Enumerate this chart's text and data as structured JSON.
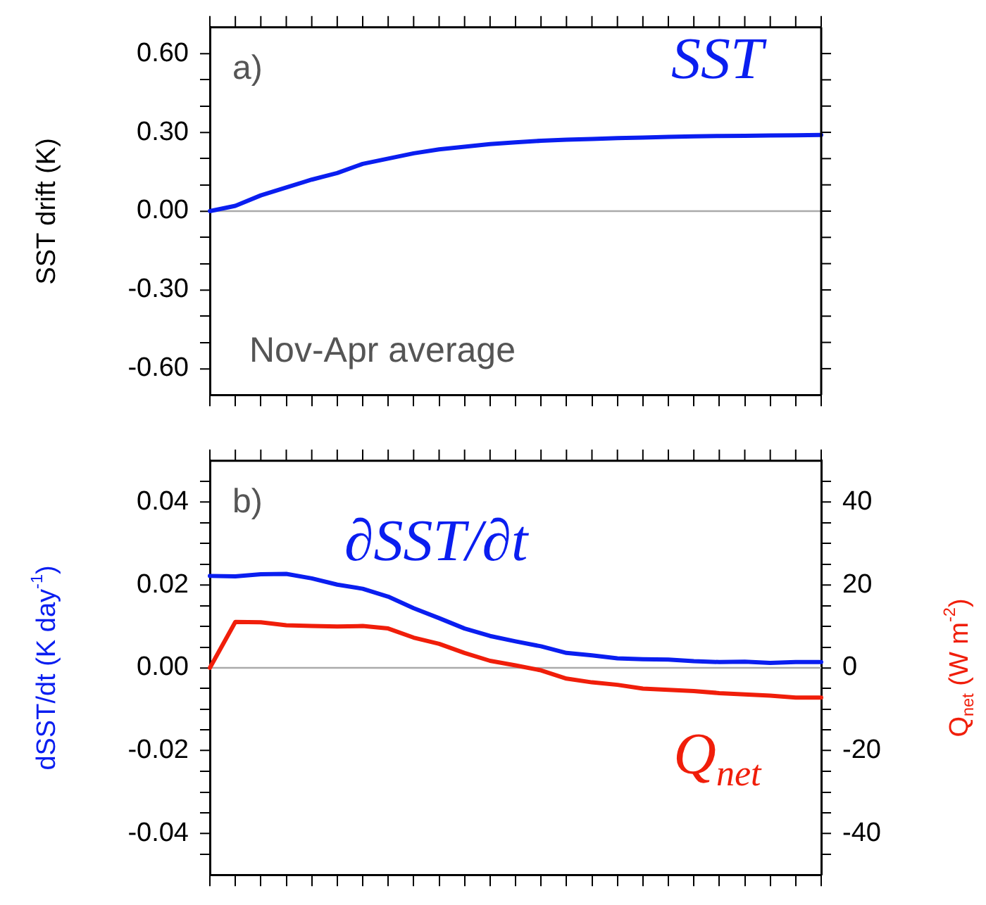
{
  "chart_data": [
    {
      "type": "line",
      "ylabel": "SST drift (K)",
      "annotations": [
        "a)",
        "Nov-Apr average"
      ],
      "categories": [
        null,
        null,
        null,
        null,
        null,
        null,
        null,
        null,
        null,
        null,
        null,
        null,
        null,
        null,
        null,
        null,
        null,
        null,
        null,
        null,
        null,
        null,
        null,
        null,
        null
      ],
      "series": [
        {
          "name": "SST",
          "color": "#0a1ef0",
          "values": [
            0,
            0.02,
            0.06,
            0.09,
            0.12,
            0.145,
            0.18,
            0.2,
            0.22,
            0.235,
            0.245,
            0.255,
            0.262,
            0.268,
            0.272,
            0.275,
            0.278,
            0.28,
            0.283,
            0.285,
            0.286,
            0.287,
            0.288,
            0.289,
            0.29
          ]
        }
      ],
      "ylim": [
        -0.7,
        0.7
      ],
      "yticks": [
        {
          "value": -0.6,
          "label": "-0.60"
        },
        {
          "value": -0.5,
          "label": null
        },
        {
          "value": -0.4,
          "label": null
        },
        {
          "value": -0.3,
          "label": "-0.30"
        },
        {
          "value": -0.2,
          "label": null
        },
        {
          "value": -0.1,
          "label": null
        },
        {
          "value": 0,
          "label": "0.00"
        },
        {
          "value": 0.1,
          "label": null
        },
        {
          "value": 0.2,
          "label": null
        },
        {
          "value": 0.3,
          "label": "0.30"
        },
        {
          "value": 0.4,
          "label": null
        },
        {
          "value": 0.5,
          "label": null
        },
        {
          "value": 0.6,
          "label": "0.60"
        }
      ],
      "ref_lines": [
        {
          "axis": "y",
          "value": 0,
          "color": "#aaaaaa"
        }
      ],
      "grid": false,
      "legend": false,
      "marker": "none",
      "line_style": "solid"
    },
    {
      "type": "line",
      "ylabel": "dSST/dt (K day$^{-1}$)",
      "y2label": "Q$_{net}$ (W m$^{-2}$)",
      "annotations": [
        "b)"
      ],
      "categories": [
        null,
        null,
        null,
        null,
        null,
        null,
        null,
        null,
        null,
        null,
        null,
        null,
        null,
        null,
        null,
        null,
        null,
        null,
        null,
        null,
        null,
        null,
        null,
        null,
        null
      ],
      "series": [
        {
          "name": "∂SST/∂t",
          "color": "#0a1ef0",
          "values": [
            0.0222,
            0.0221,
            0.0226,
            0.0227,
            0.0216,
            0.0201,
            0.0191,
            0.0172,
            0.0144,
            0.012,
            0.0095,
            0.0077,
            0.0064,
            0.0052,
            0.0036,
            0.003,
            0.0023,
            0.0021,
            0.002,
            0.0016,
            0.0014,
            0.0015,
            0.0012,
            0.0014,
            0.0014
          ]
        },
        {
          "name": "Q$_{net}$",
          "color": "#f01e0a",
          "axis": "y2",
          "values": [
            0,
            11.1,
            11.0,
            10.3,
            10.1,
            10.0,
            10.1,
            9.5,
            7.3,
            5.8,
            3.6,
            1.7,
            0.6,
            -0.6,
            -2.6,
            -3.5,
            -4.1,
            -5.0,
            -5.3,
            -5.6,
            -6.1,
            -6.4,
            -6.7,
            -7.2,
            -7.2
          ]
        }
      ],
      "ylim": [
        -0.05,
        0.05
      ],
      "yticks": [
        {
          "value": -0.045,
          "label": null
        },
        {
          "value": -0.04,
          "label": "-0.04"
        },
        {
          "value": -0.035,
          "label": null
        },
        {
          "value": -0.03,
          "label": null
        },
        {
          "value": -0.025,
          "label": null
        },
        {
          "value": -0.02,
          "label": "-0.02"
        },
        {
          "value": -0.015,
          "label": null
        },
        {
          "value": -0.01,
          "label": null
        },
        {
          "value": -0.005,
          "label": null
        },
        {
          "value": 0,
          "label": "0.00"
        },
        {
          "value": 0.005,
          "label": null
        },
        {
          "value": 0.01,
          "label": null
        },
        {
          "value": 0.015,
          "label": null
        },
        {
          "value": 0.02,
          "label": "0.02"
        },
        {
          "value": 0.025,
          "label": null
        },
        {
          "value": 0.03,
          "label": null
        },
        {
          "value": 0.035,
          "label": null
        },
        {
          "value": 0.04,
          "label": "0.04"
        },
        {
          "value": 0.045,
          "label": null
        }
      ],
      "y2lim": [
        -50,
        50
      ],
      "y2ticks": [
        {
          "value": -45,
          "label": null
        },
        -40,
        {
          "value": -35,
          "label": null
        },
        {
          "value": -30,
          "label": null
        },
        {
          "value": -25,
          "label": null
        },
        -20,
        {
          "value": -15,
          "label": null
        },
        {
          "value": -10,
          "label": null
        },
        {
          "value": -5,
          "label": null
        },
        0,
        {
          "value": 5,
          "label": null
        },
        {
          "value": 10,
          "label": null
        },
        {
          "value": 15,
          "label": null
        },
        20,
        {
          "value": 25,
          "label": null
        },
        {
          "value": 30,
          "label": null
        },
        {
          "value": 35,
          "label": null
        },
        40,
        {
          "value": 45,
          "label": null
        }
      ],
      "ref_lines": [
        {
          "axis": "y",
          "value": 0,
          "color": "#aaaaaa"
        }
      ],
      "grid": false,
      "legend": false,
      "marker": "none",
      "line_style": "solid"
    }
  ]
}
